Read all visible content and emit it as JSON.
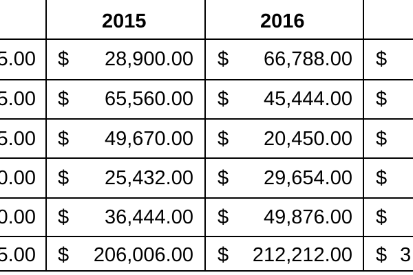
{
  "headers": [
    "2015",
    "2016"
  ],
  "rows": [
    {
      "col0": "5.00",
      "col2015": "28,900.00",
      "col2016": "66,788.00"
    },
    {
      "col0": "5.00",
      "col2015": "65,560.00",
      "col2016": "45,444.00"
    },
    {
      "col0": "5.00",
      "col2015": "49,670.00",
      "col2016": "20,450.00"
    },
    {
      "col0": "0.00",
      "col2015": "25,432.00",
      "col2016": "29,654.00"
    },
    {
      "col0": "0.00",
      "col2015": "36,444.00",
      "col2016": "49,876.00"
    },
    {
      "col0": "5.00",
      "col2015": "206,006.00",
      "col2016": "212,212.00",
      "col_last_partial": "3"
    }
  ],
  "currency_symbol": "$"
}
